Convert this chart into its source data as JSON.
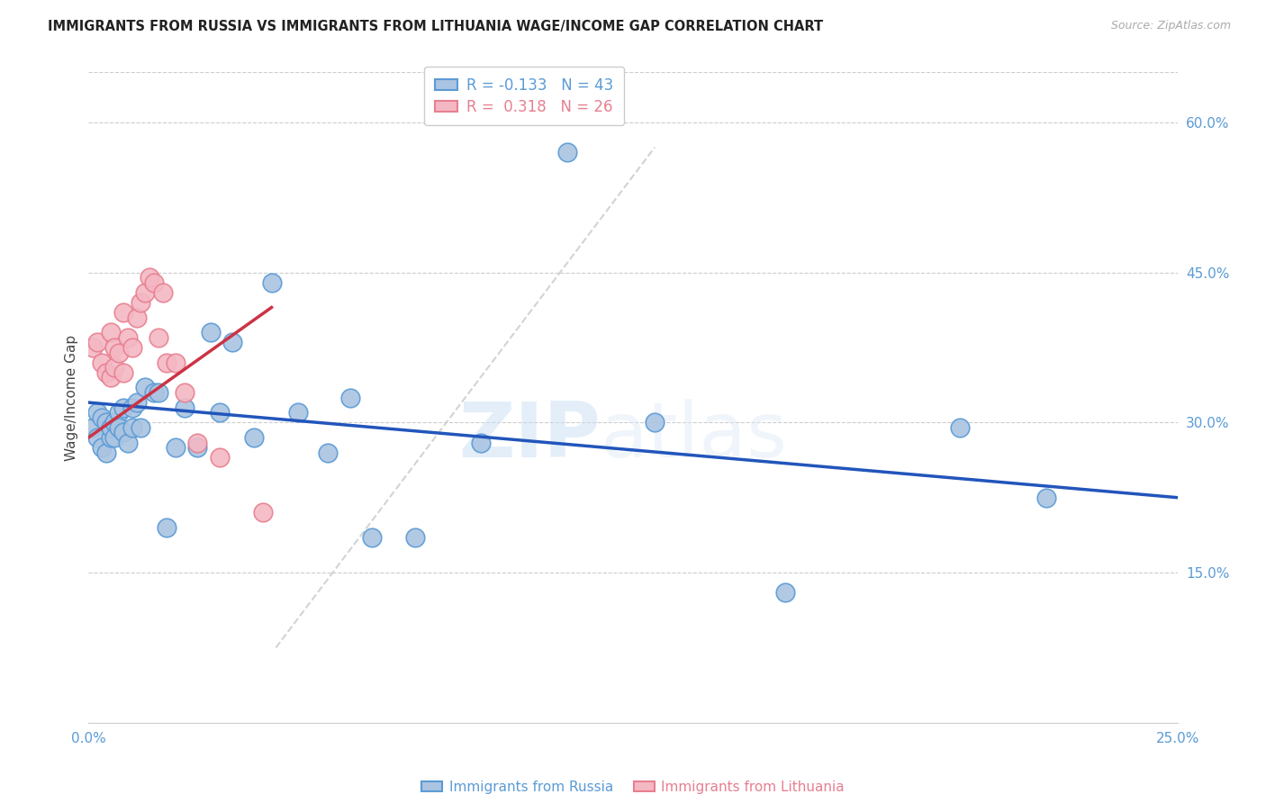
{
  "title": "IMMIGRANTS FROM RUSSIA VS IMMIGRANTS FROM LITHUANIA WAGE/INCOME GAP CORRELATION CHART",
  "source": "Source: ZipAtlas.com",
  "ylabel": "Wage/Income Gap",
  "xlim": [
    0.0,
    0.25
  ],
  "ylim": [
    0.0,
    0.65
  ],
  "xticks": [
    0.0,
    0.05,
    0.1,
    0.15,
    0.2,
    0.25
  ],
  "xticklabels": [
    "0.0%",
    "",
    "",
    "",
    "",
    "25.0%"
  ],
  "ytick_vals": [
    0.15,
    0.3,
    0.45,
    0.6
  ],
  "yticklabels_right": [
    "15.0%",
    "30.0%",
    "45.0%",
    "60.0%"
  ],
  "russia_color": "#aac4e2",
  "russia_edge_color": "#5b9bd5",
  "lithuania_color": "#f4b8c4",
  "lithuania_edge_color": "#e87f90",
  "russia_R": "-0.133",
  "russia_N": "43",
  "lithuania_R": "0.318",
  "lithuania_N": "26",
  "russia_line_color": "#2255bb",
  "lithuania_line_color": "#cc3344",
  "dashed_line_color": "#cccccc",
  "watermark_zip": "ZIP",
  "watermark_atlas": "atlas",
  "russia_x": [
    0.001,
    0.002,
    0.002,
    0.003,
    0.003,
    0.004,
    0.004,
    0.005,
    0.005,
    0.006,
    0.006,
    0.007,
    0.007,
    0.008,
    0.008,
    0.009,
    0.01,
    0.01,
    0.011,
    0.012,
    0.013,
    0.015,
    0.016,
    0.018,
    0.02,
    0.022,
    0.025,
    0.028,
    0.03,
    0.033,
    0.038,
    0.042,
    0.048,
    0.055,
    0.06,
    0.065,
    0.075,
    0.09,
    0.11,
    0.13,
    0.16,
    0.2,
    0.22
  ],
  "russia_y": [
    0.295,
    0.31,
    0.285,
    0.275,
    0.305,
    0.3,
    0.27,
    0.285,
    0.295,
    0.3,
    0.285,
    0.31,
    0.295,
    0.29,
    0.315,
    0.28,
    0.315,
    0.295,
    0.32,
    0.295,
    0.335,
    0.33,
    0.33,
    0.195,
    0.275,
    0.315,
    0.275,
    0.39,
    0.31,
    0.38,
    0.285,
    0.44,
    0.31,
    0.27,
    0.325,
    0.185,
    0.185,
    0.28,
    0.57,
    0.3,
    0.13,
    0.295,
    0.225
  ],
  "lithuania_x": [
    0.001,
    0.002,
    0.003,
    0.004,
    0.005,
    0.005,
    0.006,
    0.006,
    0.007,
    0.008,
    0.008,
    0.009,
    0.01,
    0.011,
    0.012,
    0.013,
    0.014,
    0.015,
    0.016,
    0.017,
    0.018,
    0.02,
    0.022,
    0.025,
    0.03,
    0.04
  ],
  "lithuania_y": [
    0.375,
    0.38,
    0.36,
    0.35,
    0.345,
    0.39,
    0.355,
    0.375,
    0.37,
    0.35,
    0.41,
    0.385,
    0.375,
    0.405,
    0.42,
    0.43,
    0.445,
    0.44,
    0.385,
    0.43,
    0.36,
    0.36,
    0.33,
    0.28,
    0.265,
    0.21
  ],
  "russia_line_x": [
    0.0,
    0.25
  ],
  "russia_line_y": [
    0.32,
    0.225
  ],
  "lithuania_line_x": [
    0.0,
    0.042
  ],
  "lithuania_line_y": [
    0.285,
    0.415
  ],
  "dash_line_x": [
    0.043,
    0.13
  ],
  "dash_line_y": [
    0.075,
    0.575
  ]
}
